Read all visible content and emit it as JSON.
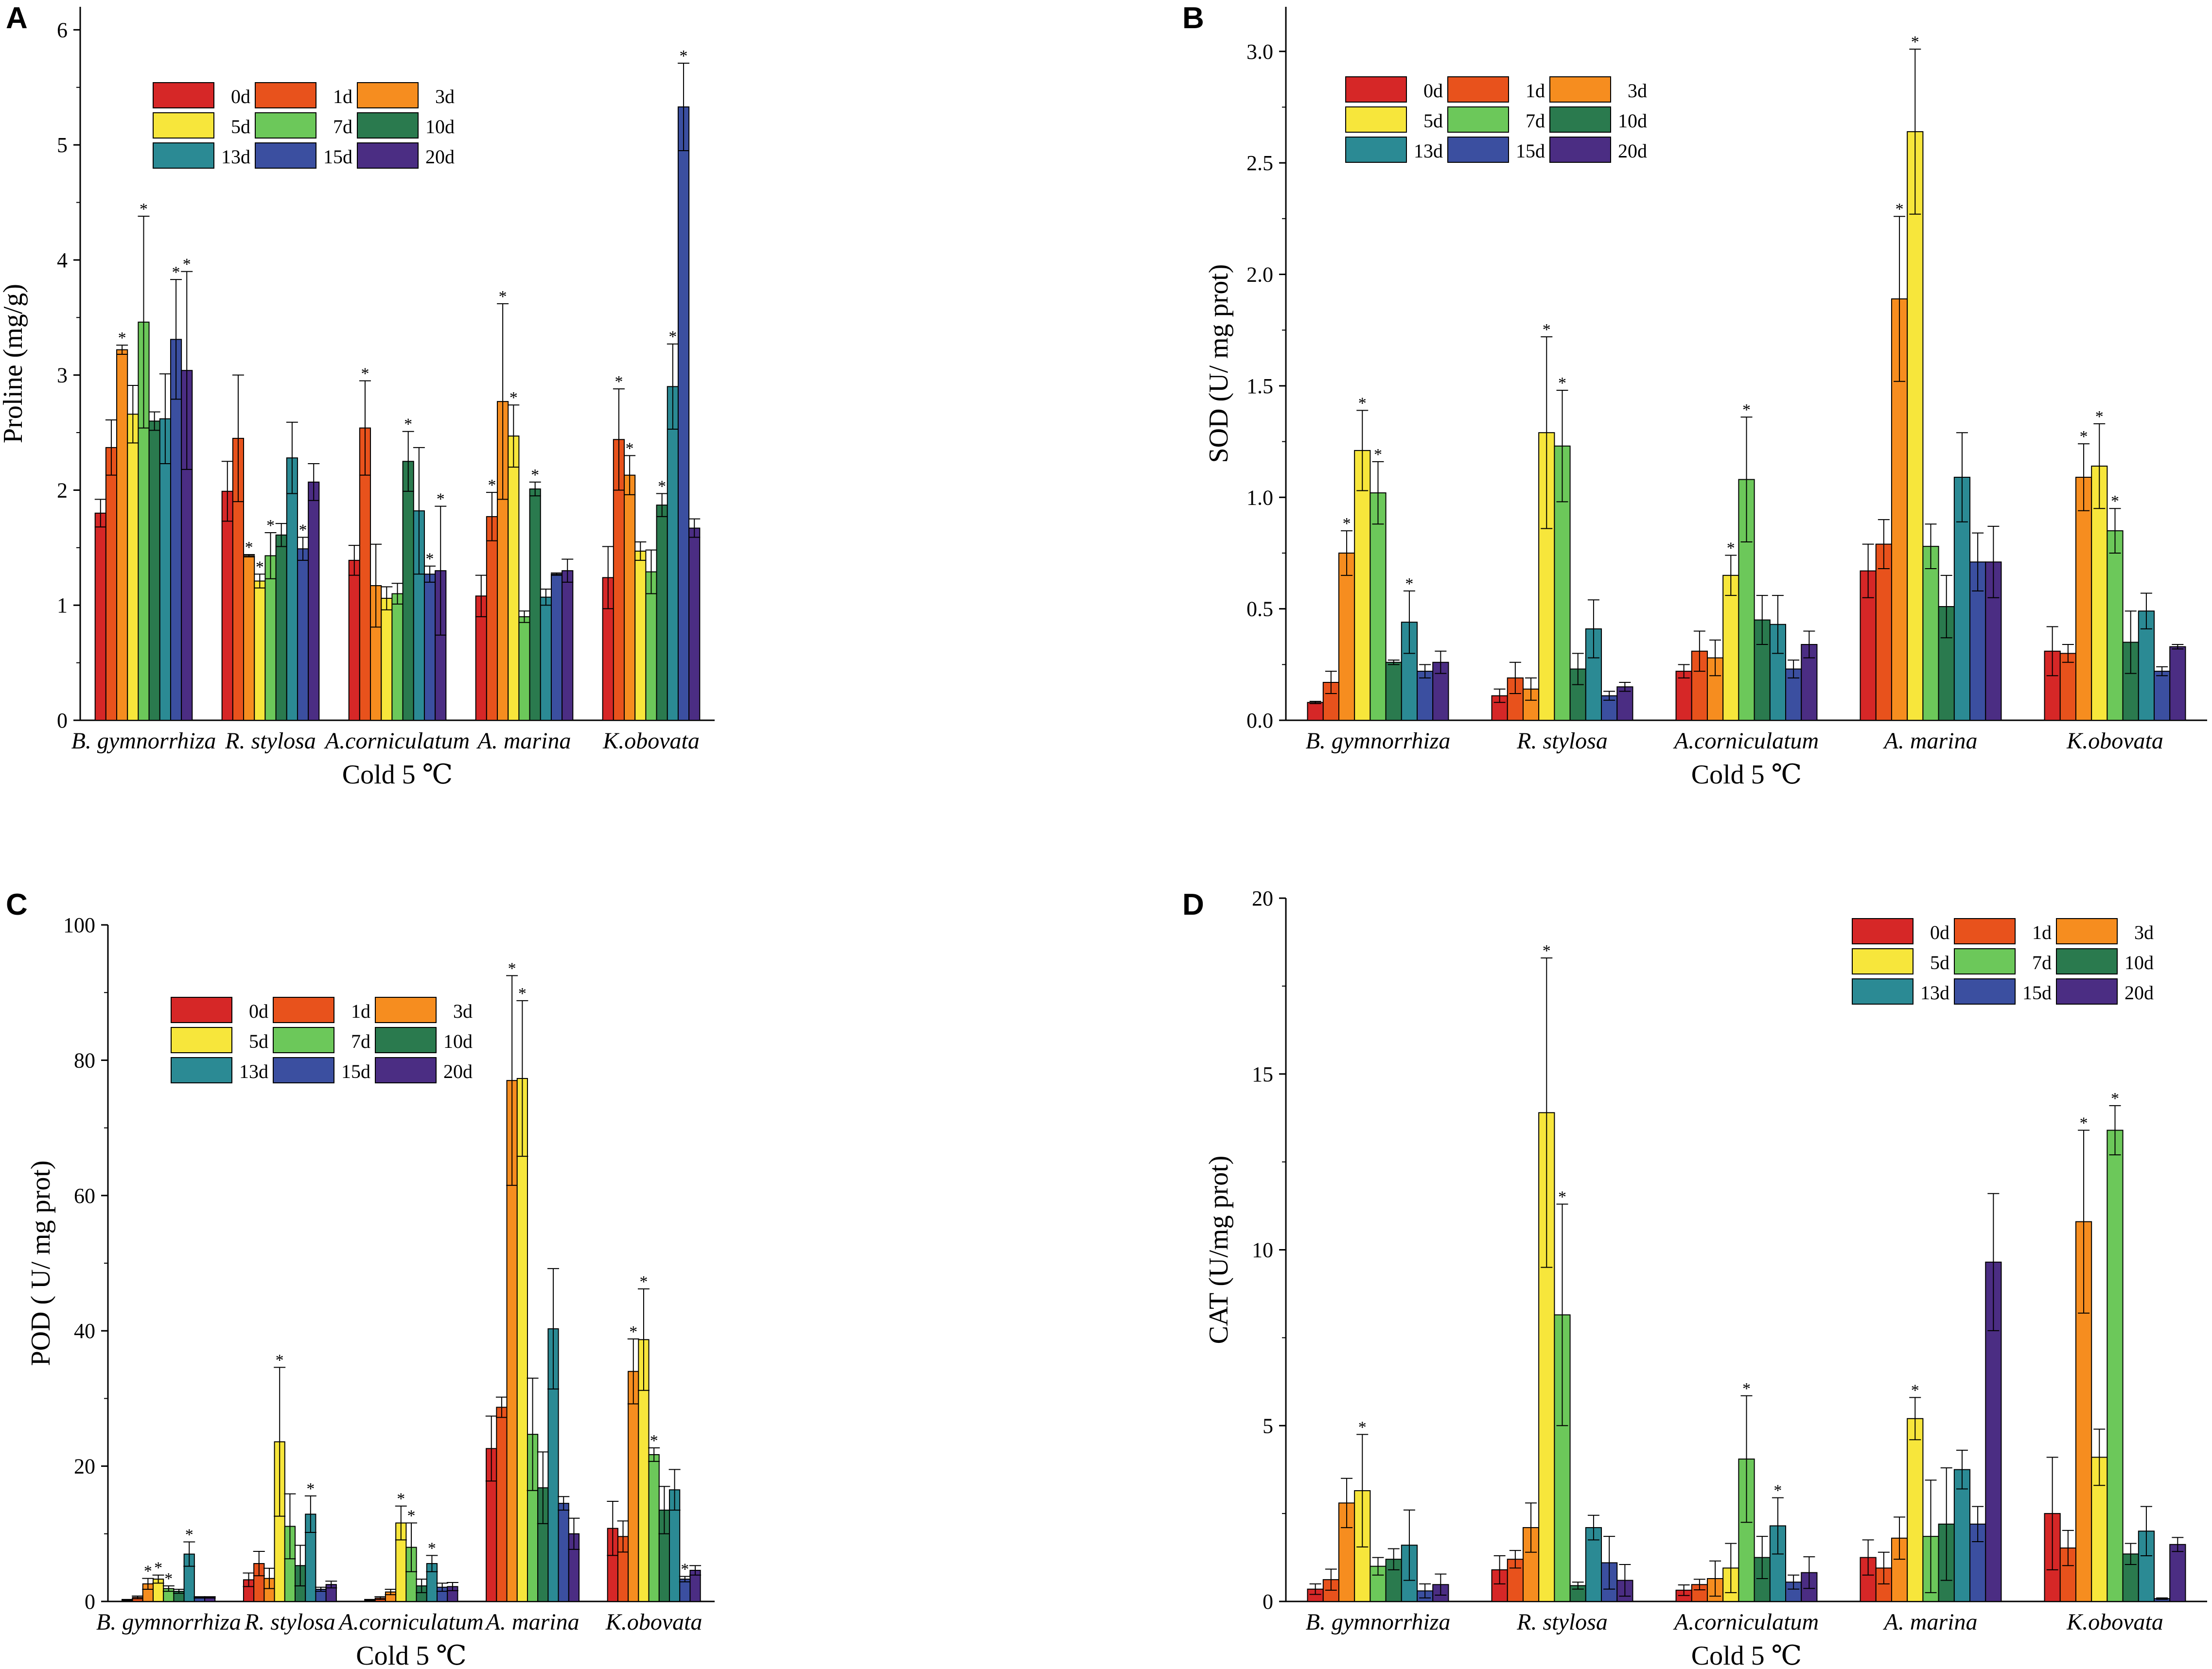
{
  "colors": {
    "0d": "#d62727",
    "1d": "#e8521c",
    "3d": "#f68d1f",
    "5d": "#f7e63b",
    "7d": "#6cc85a",
    "10d": "#2a7a4e",
    "13d": "#2b8a94",
    "15d": "#3b4fa0",
    "20d": "#4b2d83"
  },
  "chart_data": [
    {
      "panel": "A",
      "type": "bar",
      "ylabel": "Proline (mg/g)",
      "xlabel": "Cold  5 ℃",
      "ylim": [
        0,
        6.2
      ],
      "yticks": [
        0,
        1,
        2,
        3,
        4,
        5,
        6
      ],
      "ytick_labels": [
        "0",
        "1",
        "2",
        "3",
        "4",
        "5",
        "6"
      ],
      "categories": [
        "B. gymnorrhiza",
        "R. stylosa",
        "A.corniculatum",
        "A. marina",
        "K.obovata"
      ],
      "legend": {
        "position": "top-left",
        "labels": [
          "0d",
          "1d",
          "3d",
          "5d",
          "7d",
          "10d",
          "13d",
          "15d",
          "20d"
        ]
      },
      "series": [
        {
          "name": "0d",
          "values": [
            1.8,
            1.99,
            1.39,
            1.08,
            1.24
          ],
          "errors": [
            0.12,
            0.26,
            0.13,
            0.18,
            0.27
          ],
          "sig": [
            false,
            false,
            false,
            false,
            false
          ]
        },
        {
          "name": "1d",
          "values": [
            2.37,
            2.45,
            2.54,
            1.77,
            2.44
          ],
          "errors": [
            0.24,
            0.55,
            0.41,
            0.21,
            0.44
          ],
          "sig": [
            false,
            false,
            true,
            true,
            true
          ]
        },
        {
          "name": "3d",
          "values": [
            3.22,
            1.43,
            1.17,
            2.77,
            2.13
          ],
          "errors": [
            0.04,
            0.01,
            0.36,
            0.85,
            0.17
          ],
          "sig": [
            true,
            true,
            false,
            true,
            true
          ]
        },
        {
          "name": "5d",
          "values": [
            2.66,
            1.21,
            1.06,
            2.47,
            1.47
          ],
          "errors": [
            0.25,
            0.06,
            0.1,
            0.27,
            0.08
          ],
          "sig": [
            false,
            true,
            false,
            true,
            false
          ]
        },
        {
          "name": "7d",
          "values": [
            3.46,
            1.43,
            1.1,
            0.9,
            1.29
          ],
          "errors": [
            0.92,
            0.2,
            0.09,
            0.05,
            0.19
          ],
          "sig": [
            true,
            true,
            false,
            false,
            false
          ]
        },
        {
          "name": "10d",
          "values": [
            2.6,
            1.61,
            2.25,
            2.01,
            1.87
          ],
          "errors": [
            0.08,
            0.1,
            0.26,
            0.06,
            0.1
          ],
          "sig": [
            false,
            false,
            true,
            true,
            true
          ]
        },
        {
          "name": "13d",
          "values": [
            2.62,
            2.28,
            1.82,
            1.07,
            2.9
          ],
          "errors": [
            0.39,
            0.31,
            0.55,
            0.07,
            0.37
          ],
          "sig": [
            false,
            false,
            false,
            false,
            true
          ]
        },
        {
          "name": "15d",
          "values": [
            3.31,
            1.49,
            1.27,
            1.27,
            5.33
          ],
          "errors": [
            0.52,
            0.1,
            0.07,
            0.01,
            0.38
          ],
          "sig": [
            true,
            true,
            true,
            false,
            true
          ]
        },
        {
          "name": "20d",
          "values": [
            3.04,
            2.07,
            1.3,
            1.3,
            1.67
          ],
          "errors": [
            0.86,
            0.16,
            0.56,
            0.1,
            0.08
          ],
          "sig": [
            true,
            false,
            true,
            false,
            false
          ]
        }
      ]
    },
    {
      "panel": "B",
      "type": "bar",
      "ylabel": "SOD (U/ mg prot)",
      "xlabel": "Cold  5 ℃",
      "ylim": [
        0,
        3.2
      ],
      "yticks": [
        0,
        0.5,
        1,
        1.5,
        2,
        2.5,
        3
      ],
      "ytick_labels": [
        "0.0",
        "0.5",
        "1.0",
        "1.5",
        "2.0",
        "2.5",
        "3.0"
      ],
      "categories": [
        "B. gymnorrhiza",
        "R. stylosa",
        "A.corniculatum",
        "A. marina",
        "K.obovata"
      ],
      "legend": {
        "position": "top-left",
        "labels": [
          "0d",
          "1d",
          "3d",
          "5d",
          "7d",
          "10d",
          "13d",
          "15d",
          "20d"
        ]
      },
      "series": [
        {
          "name": "0d",
          "values": [
            0.08,
            0.11,
            0.22,
            0.67,
            0.31
          ],
          "errors": [
            0.005,
            0.03,
            0.03,
            0.12,
            0.11
          ],
          "sig": [
            false,
            false,
            false,
            false,
            false
          ]
        },
        {
          "name": "1d",
          "values": [
            0.17,
            0.19,
            0.31,
            0.79,
            0.3
          ],
          "errors": [
            0.05,
            0.07,
            0.09,
            0.11,
            0.04
          ],
          "sig": [
            false,
            false,
            false,
            false,
            false
          ]
        },
        {
          "name": "3d",
          "values": [
            0.75,
            0.14,
            0.28,
            1.89,
            1.09
          ],
          "errors": [
            0.1,
            0.05,
            0.08,
            0.37,
            0.15
          ],
          "sig": [
            true,
            false,
            false,
            true,
            true
          ]
        },
        {
          "name": "5d",
          "values": [
            1.21,
            1.29,
            0.65,
            2.64,
            1.14
          ],
          "errors": [
            0.18,
            0.43,
            0.09,
            0.37,
            0.19
          ],
          "sig": [
            true,
            true,
            true,
            true,
            true
          ]
        },
        {
          "name": "7d",
          "values": [
            1.02,
            1.23,
            1.08,
            0.78,
            0.85
          ],
          "errors": [
            0.14,
            0.25,
            0.28,
            0.1,
            0.1
          ],
          "sig": [
            true,
            true,
            true,
            false,
            true
          ]
        },
        {
          "name": "10d",
          "values": [
            0.26,
            0.23,
            0.45,
            0.51,
            0.35
          ],
          "errors": [
            0.01,
            0.07,
            0.11,
            0.14,
            0.14
          ],
          "sig": [
            false,
            false,
            false,
            false,
            false
          ]
        },
        {
          "name": "13d",
          "values": [
            0.44,
            0.41,
            0.43,
            1.09,
            0.49
          ],
          "errors": [
            0.14,
            0.13,
            0.13,
            0.2,
            0.08
          ],
          "sig": [
            true,
            false,
            false,
            false,
            false
          ]
        },
        {
          "name": "15d",
          "values": [
            0.22,
            0.11,
            0.23,
            0.71,
            0.22
          ],
          "errors": [
            0.03,
            0.02,
            0.04,
            0.13,
            0.02
          ],
          "sig": [
            false,
            false,
            false,
            false,
            false
          ]
        },
        {
          "name": "20d",
          "values": [
            0.26,
            0.15,
            0.34,
            0.71,
            0.33
          ],
          "errors": [
            0.05,
            0.02,
            0.06,
            0.16,
            0.01
          ],
          "sig": [
            false,
            false,
            false,
            false,
            false
          ]
        }
      ]
    },
    {
      "panel": "C",
      "type": "bar",
      "ylabel": "POD ( U/ mg prot)",
      "xlabel": "Cold  5 ℃",
      "ylim": [
        0,
        100
      ],
      "yticks": [
        0,
        20,
        40,
        60,
        80,
        100
      ],
      "ytick_labels": [
        "0",
        "20",
        "40",
        "60",
        "80",
        "100"
      ],
      "categories": [
        "B. gymnorrhiza",
        "R. stylosa",
        "A.corniculatum",
        "A. marina",
        "K.obovata"
      ],
      "legend": {
        "position": "top-left",
        "labels": [
          "0d",
          "1d",
          "3d",
          "5d",
          "7d",
          "10d",
          "13d",
          "15d",
          "20d"
        ]
      },
      "series": [
        {
          "name": "0d",
          "values": [
            0.2,
            3.2,
            0.2,
            22.6,
            10.8
          ],
          "errors": [
            0.1,
            1.0,
            0.1,
            4.8,
            4.0
          ],
          "sig": [
            false,
            false,
            false,
            false,
            false
          ]
        },
        {
          "name": "1d",
          "values": [
            0.6,
            5.6,
            0.5,
            28.7,
            9.6
          ],
          "errors": [
            0.2,
            1.8,
            0.2,
            1.5,
            2.3
          ],
          "sig": [
            false,
            false,
            false,
            false,
            false
          ]
        },
        {
          "name": "3d",
          "values": [
            2.6,
            3.4,
            1.4,
            77.0,
            34.0
          ],
          "errors": [
            0.8,
            1.5,
            0.4,
            15.5,
            4.8
          ],
          "sig": [
            true,
            false,
            false,
            true,
            true
          ]
        },
        {
          "name": "5d",
          "values": [
            3.3,
            23.6,
            11.6,
            77.3,
            38.7
          ],
          "errors": [
            0.6,
            11.0,
            2.5,
            11.5,
            7.5
          ],
          "sig": [
            true,
            true,
            true,
            true,
            true
          ]
        },
        {
          "name": "7d",
          "values": [
            1.9,
            11.1,
            8.0,
            24.7,
            21.7
          ],
          "errors": [
            0.4,
            4.8,
            3.6,
            8.3,
            1.0
          ],
          "sig": [
            true,
            false,
            true,
            false,
            true
          ]
        },
        {
          "name": "10d",
          "values": [
            1.5,
            5.3,
            2.3,
            16.8,
            13.5
          ],
          "errors": [
            0.3,
            3.0,
            1.0,
            5.3,
            3.5
          ],
          "sig": [
            false,
            false,
            false,
            false,
            false
          ]
        },
        {
          "name": "13d",
          "values": [
            7.0,
            12.9,
            5.6,
            40.3,
            16.5
          ],
          "errors": [
            1.8,
            2.7,
            1.2,
            8.9,
            3.0
          ],
          "sig": [
            true,
            true,
            true,
            false,
            false
          ]
        },
        {
          "name": "15d",
          "values": [
            0.6,
            1.8,
            2.1,
            14.5,
            3.3
          ],
          "errors": [
            0.1,
            0.3,
            0.6,
            1.0,
            0.4
          ],
          "sig": [
            false,
            false,
            false,
            false,
            true
          ]
        },
        {
          "name": "20d",
          "values": [
            0.6,
            2.5,
            2.2,
            10.0,
            4.6
          ],
          "errors": [
            0.1,
            0.5,
            0.6,
            2.3,
            0.7
          ],
          "sig": [
            false,
            false,
            false,
            false,
            false
          ]
        }
      ]
    },
    {
      "panel": "D",
      "type": "bar",
      "ylabel": "CAT (U/mg prot)",
      "xlabel": "Cold  5 ℃",
      "ylim": [
        0,
        20
      ],
      "yticks": [
        0,
        5,
        10,
        15,
        20
      ],
      "ytick_labels": [
        "0",
        "5",
        "10",
        "15",
        "20"
      ],
      "categories": [
        "B. gymnorrhiza",
        "R. stylosa",
        "A.corniculatum",
        "A. marina",
        "K.obovata"
      ],
      "legend": {
        "position": "top-right",
        "labels": [
          "0d",
          "1d",
          "3d",
          "5d",
          "7d",
          "10d",
          "13d",
          "15d",
          "20d"
        ]
      },
      "series": [
        {
          "name": "0d",
          "values": [
            0.35,
            0.9,
            0.32,
            1.25,
            2.5
          ],
          "errors": [
            0.15,
            0.4,
            0.15,
            0.5,
            1.6
          ],
          "sig": [
            false,
            false,
            false,
            false,
            false
          ]
        },
        {
          "name": "1d",
          "values": [
            0.62,
            1.2,
            0.48,
            0.95,
            1.52
          ],
          "errors": [
            0.3,
            0.25,
            0.15,
            0.45,
            0.5
          ],
          "sig": [
            false,
            false,
            false,
            false,
            false
          ]
        },
        {
          "name": "3d",
          "values": [
            2.8,
            2.1,
            0.65,
            1.8,
            10.8
          ],
          "errors": [
            0.7,
            0.7,
            0.5,
            0.6,
            2.6
          ],
          "sig": [
            false,
            false,
            false,
            false,
            true
          ]
        },
        {
          "name": "5d",
          "values": [
            3.15,
            13.9,
            0.95,
            5.2,
            4.1
          ],
          "errors": [
            1.6,
            4.4,
            0.7,
            0.6,
            0.8
          ],
          "sig": [
            true,
            true,
            false,
            true,
            false
          ]
        },
        {
          "name": "7d",
          "values": [
            1.0,
            8.15,
            4.05,
            1.85,
            13.4
          ],
          "errors": [
            0.25,
            3.15,
            1.8,
            1.6,
            0.7
          ],
          "sig": [
            false,
            true,
            true,
            false,
            true
          ]
        },
        {
          "name": "10d",
          "values": [
            1.2,
            0.45,
            1.25,
            2.2,
            1.35
          ],
          "errors": [
            0.3,
            0.1,
            0.6,
            1.6,
            0.3
          ],
          "sig": [
            false,
            false,
            false,
            false,
            false
          ]
        },
        {
          "name": "13d",
          "values": [
            1.6,
            2.1,
            2.15,
            3.75,
            2.0
          ],
          "errors": [
            1.0,
            0.35,
            0.8,
            0.55,
            0.7
          ],
          "sig": [
            false,
            false,
            true,
            false,
            false
          ]
        },
        {
          "name": "15d",
          "values": [
            0.3,
            1.1,
            0.55,
            2.2,
            0.08
          ],
          "errors": [
            0.2,
            0.75,
            0.2,
            0.5,
            0.02
          ],
          "sig": [
            false,
            false,
            false,
            false,
            false
          ]
        },
        {
          "name": "20d",
          "values": [
            0.48,
            0.6,
            0.82,
            9.65,
            1.62
          ],
          "errors": [
            0.3,
            0.45,
            0.45,
            1.95,
            0.2
          ],
          "sig": [
            false,
            false,
            false,
            false,
            false
          ]
        }
      ]
    }
  ]
}
